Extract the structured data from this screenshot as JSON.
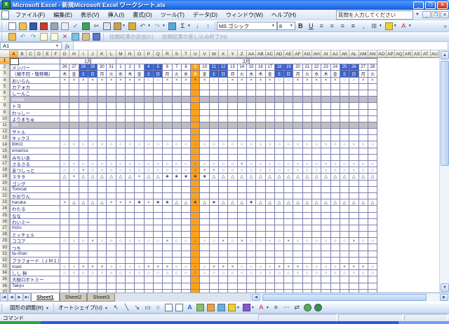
{
  "window": {
    "title": "Microsoft Excel - 新規Microsoft Excel ワークシート.xls"
  },
  "menu_bar": {
    "items": [
      "ファイル(F)",
      "編集(E)",
      "表示(V)",
      "挿入(I)",
      "書式(O)",
      "ツール(T)",
      "データ(D)",
      "ウィンドウ(W)",
      "ヘルプ(H)"
    ],
    "question_placeholder": "質問を入力してください"
  },
  "standard_toolbar": {
    "icons": [
      "new",
      "open",
      "save",
      "permission",
      "print",
      "print-preview",
      "spelling",
      "research",
      "cut",
      "copy",
      "paste",
      "format-painter",
      "undo",
      "redo",
      "insert-hyperlink",
      "autosum",
      "sort-ascending",
      "sort-descending"
    ],
    "font_name": "MS ゴシック",
    "font_size": "8",
    "format_icons": [
      "bold",
      "underline",
      "align-left",
      "align-center",
      "align-right",
      "merge-and-center",
      "comma-style",
      "borders",
      "fill-color",
      "font-color"
    ],
    "overflow_chevron": "»"
  },
  "review_toolbar": {
    "icons": [
      "new-comment",
      "previous-comment",
      "next-comment",
      "show-comment",
      "show-all-comments",
      "delete-comment",
      "mark-comment",
      "send-review",
      "end-review"
    ],
    "buttons": [
      "校閲結果の返信(C)",
      "校閲結果の差し込み終了(N)"
    ]
  },
  "formula_bar": {
    "name_box": "A1",
    "fx": "fx"
  },
  "grid": {
    "column_letters": [
      "A",
      "B",
      "C",
      "D",
      "E",
      "F",
      "G",
      "H",
      "I",
      "J",
      "K",
      "L",
      "M",
      "N",
      "O",
      "P",
      "Q",
      "R",
      "S",
      "T",
      "U",
      "V",
      "W",
      "X",
      "Y",
      "Z",
      "AA",
      "AB",
      "AC",
      "AD",
      "AE",
      "AF",
      "AG",
      "AH",
      "AI",
      "AJ",
      "AK",
      "AL",
      "AM",
      "AN",
      "AO",
      "AP",
      "AQ",
      "AR",
      "AS",
      "AT",
      "AU"
    ],
    "selected_column": "A",
    "selected_cell": "A1",
    "row_count": 37,
    "months": [
      {
        "label": "1月",
        "span": 6
      },
      {
        "label": "2月",
        "span": 28
      }
    ],
    "member_header": "メンバー",
    "member_note": "（順不同・敬称略）",
    "dates": [
      26,
      27,
      28,
      29,
      30,
      31,
      1,
      2,
      3,
      4,
      5,
      6,
      7,
      8,
      9,
      10,
      11,
      12,
      13,
      14,
      15,
      16,
      17,
      18,
      19,
      20,
      21,
      22,
      23,
      24,
      25,
      26,
      27,
      28
    ],
    "days": [
      "木",
      "金",
      "土",
      "日",
      "月",
      "火",
      "水",
      "木",
      "金",
      "土",
      "日",
      "月",
      "火",
      "水",
      "木",
      "金",
      "土",
      "日",
      "月",
      "火",
      "水",
      "木",
      "金",
      "土",
      "日",
      "月",
      "火",
      "水",
      "木",
      "金",
      "土",
      "日",
      "月",
      "火"
    ],
    "weekend_indices": [
      2,
      3,
      9,
      10,
      16,
      17,
      23,
      24,
      30,
      31
    ],
    "highlighted_date_index": 14,
    "colors": {
      "weekend_bg": "#3A62C8",
      "highlight_bg": "#FAA21E",
      "shaded_row_bg": "#BFBFBF",
      "grid_line": "#7D7DB0",
      "mark": "#333377"
    },
    "mark_symbols": {
      "o": "○",
      "x": "×",
      "t": "△",
      "s": "★",
      "-": ""
    },
    "members": [
      {
        "row": 4,
        "name": "おいらん",
        "shaded": false,
        "marks": "xxxxxxxxxooxxxxxooxxxxxooxxxxxooxx"
      },
      {
        "row": 5,
        "name": "カアォカ",
        "shaded": false,
        "marks": ""
      },
      {
        "row": 6,
        "name": "しーんこ",
        "shaded": false,
        "marks": ""
      },
      {
        "row": 7,
        "name": "maxpi",
        "shaded": true,
        "marks": ""
      },
      {
        "row": 8,
        "name": "トヨ",
        "shaded": false,
        "marks": ""
      },
      {
        "row": 9,
        "name": "わっしー",
        "shaded": false,
        "marks": ""
      },
      {
        "row": 10,
        "name": "よりまちゅ",
        "shaded": false,
        "marks": ""
      },
      {
        "row": 11,
        "name": "Vic",
        "shaded": true,
        "marks": ""
      },
      {
        "row": 12,
        "name": "サトル",
        "shaded": false,
        "marks": ""
      },
      {
        "row": 13,
        "name": "キックス",
        "shaded": false,
        "marks": ""
      },
      {
        "row": 14,
        "name": "BIKO",
        "shaded": false,
        "marks": "oooooooooooooooooooooooooooooooooo"
      },
      {
        "row": 15,
        "name": "emarisu",
        "shaded": false,
        "marks": ""
      },
      {
        "row": 16,
        "name": "みちいあ",
        "shaded": false,
        "marks": ""
      },
      {
        "row": 17,
        "name": "さるさる",
        "shaded": false,
        "marks": "oooooooooooooooooooxoooooooooooooo"
      },
      {
        "row": 18,
        "name": "あつしっと",
        "shaded": false,
        "marks": "ooxooooooooooooxxooooooooooooooooo"
      },
      {
        "row": 19,
        "name": "３９９",
        "shaded": false,
        "marks": "txttttttxttssssstttttttttttttttttt"
      },
      {
        "row": 20,
        "name": "ゴング",
        "shaded": false,
        "marks": ""
      },
      {
        "row": 21,
        "name": "Tomcat",
        "shaded": false,
        "marks": ""
      },
      {
        "row": 22,
        "name": "かおりん",
        "shaded": false,
        "marks": ""
      },
      {
        "row": 23,
        "name": "haruka",
        "shaded": false,
        "marks": "xttttxxxsxssttststttsttttttttttttt"
      },
      {
        "row": 24,
        "name": "わたる",
        "shaded": false,
        "marks": ""
      },
      {
        "row": 25,
        "name": "なな",
        "shaded": false,
        "marks": ""
      },
      {
        "row": 26,
        "name": "わいミー",
        "shaded": false,
        "marks": ""
      },
      {
        "row": 27,
        "name": "mizu",
        "shaded": false,
        "marks": ""
      },
      {
        "row": 28,
        "name": "ミッチェル",
        "shaded": false,
        "marks": ""
      },
      {
        "row": 29,
        "name": "ココア",
        "shaded": false,
        "marks": "oooxoooooooxoooooxoxooooxooooooxoo"
      },
      {
        "row": 30,
        "name": "つち",
        "shaded": false,
        "marks": ""
      },
      {
        "row": 31,
        "name": "ta-chan",
        "shaded": false,
        "marks": ""
      },
      {
        "row": 32,
        "name": "ブラフォード（ＪＭ１）",
        "shaded": false,
        "marks": ""
      },
      {
        "row": 33,
        "name": "maxi",
        "shaded": false,
        "marks": "ooxxxooooxxxooooxxxooooxxxooooxxxo"
      },
      {
        "row": 34,
        "name": "しし 神",
        "shaded": false,
        "marks": "oooooooooooooooooooooooooooooooooo"
      },
      {
        "row": 35,
        "name": "大樹ロボトミー",
        "shaded": false,
        "marks": ""
      },
      {
        "row": 36,
        "name": "Takyu",
        "shaded": false,
        "marks": ""
      }
    ]
  },
  "sheet_tabs": {
    "active": "Sheet1",
    "tabs": [
      "Sheet1",
      "Sheet2",
      "Sheet3"
    ]
  },
  "drawing_toolbar": {
    "adjust_label": "図形の調整(R)",
    "autoshapes_label": "オートシェイプ(U)",
    "icons": [
      "select-objects",
      "line",
      "arrow",
      "rectangle",
      "oval",
      "text-box",
      "vertical-text-box",
      "insert-wordart",
      "insert-diagram",
      "insert-clipart",
      "insert-picture",
      "fill-color",
      "line-color",
      "font-color",
      "line-style",
      "dash-style",
      "arrow-style",
      "shadow-style",
      "3d-style"
    ]
  },
  "status_bar": {
    "left": "コマンド"
  }
}
